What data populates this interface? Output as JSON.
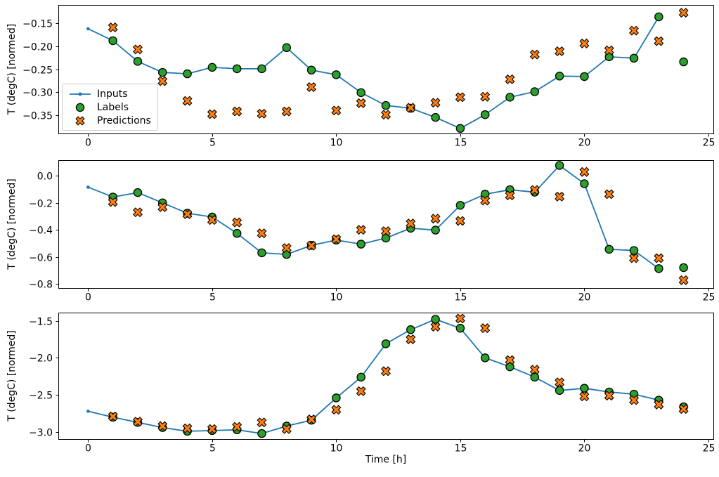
{
  "figure": {
    "background": "#ffffff"
  },
  "colors": {
    "inputs": "#1f77b4",
    "labels": "#2ca02c",
    "predictions": "#ff7f0e",
    "marker_edge": "#000000",
    "axis": "#000000",
    "legend_border": "#cccccc"
  },
  "legend": {
    "position": "inside-left-of-first-subplot",
    "items": [
      {
        "label": "Inputs",
        "marker": "line-with-dot"
      },
      {
        "label": "Labels",
        "marker": "filled-circle"
      },
      {
        "label": "Predictions",
        "marker": "thick-x"
      }
    ]
  },
  "chart_data": [
    {
      "type": "line",
      "subtype": "line+scatter",
      "title": "",
      "xlabel": "",
      "ylabel": "T (degC) [normed]",
      "grid": false,
      "xlim": [
        -1.2,
        25.2
      ],
      "ylim": [
        -0.39,
        -0.11
      ],
      "xticks": [
        0,
        5,
        10,
        15,
        20,
        25
      ],
      "xtick_labels": [
        "0",
        "5",
        "10",
        "15",
        "20",
        "25"
      ],
      "yticks": [
        -0.35,
        -0.3,
        -0.25,
        -0.2,
        -0.15
      ],
      "ytick_labels": [
        "−0.35",
        "−0.30",
        "−0.25",
        "−0.20",
        "−0.15"
      ],
      "series": [
        {
          "name": "Inputs",
          "type": "line",
          "marker": "dot",
          "x": [
            0,
            1,
            2,
            3,
            4,
            5,
            6,
            7,
            8,
            9,
            10,
            11,
            12,
            13,
            14,
            15,
            16,
            17,
            18,
            19,
            20,
            21,
            22,
            23
          ],
          "y": [
            -0.162,
            -0.188,
            -0.233,
            -0.257,
            -0.26,
            -0.246,
            -0.249,
            -0.249,
            -0.203,
            -0.252,
            -0.262,
            -0.301,
            -0.329,
            -0.335,
            -0.355,
            -0.379,
            -0.349,
            -0.311,
            -0.299,
            -0.265,
            -0.266,
            -0.223,
            -0.226,
            -0.136
          ]
        },
        {
          "name": "Labels",
          "type": "scatter",
          "marker": "circle",
          "x": [
            1,
            2,
            3,
            4,
            5,
            6,
            7,
            8,
            9,
            10,
            11,
            12,
            13,
            14,
            15,
            16,
            17,
            18,
            19,
            20,
            21,
            22,
            23,
            24
          ],
          "y": [
            -0.188,
            -0.233,
            -0.257,
            -0.26,
            -0.246,
            -0.249,
            -0.249,
            -0.203,
            -0.252,
            -0.262,
            -0.301,
            -0.329,
            -0.335,
            -0.355,
            -0.379,
            -0.349,
            -0.311,
            -0.299,
            -0.265,
            -0.266,
            -0.223,
            -0.226,
            -0.136,
            -0.234
          ]
        },
        {
          "name": "Predictions",
          "type": "scatter",
          "marker": "X",
          "x": [
            1,
            2,
            3,
            4,
            5,
            6,
            7,
            8,
            9,
            10,
            11,
            12,
            13,
            14,
            15,
            16,
            17,
            18,
            19,
            20,
            21,
            22,
            23,
            24
          ],
          "y": [
            -0.159,
            -0.207,
            -0.276,
            -0.319,
            -0.348,
            -0.342,
            -0.347,
            -0.342,
            -0.289,
            -0.34,
            -0.324,
            -0.349,
            -0.334,
            -0.323,
            -0.311,
            -0.31,
            -0.272,
            -0.218,
            -0.211,
            -0.194,
            -0.209,
            -0.166,
            -0.189,
            -0.127
          ]
        }
      ]
    },
    {
      "type": "line",
      "subtype": "line+scatter",
      "title": "",
      "xlabel": "",
      "ylabel": "T (degC) [normed]",
      "grid": false,
      "xlim": [
        -1.2,
        25.2
      ],
      "ylim": [
        -0.83,
        0.117
      ],
      "xticks": [
        0,
        5,
        10,
        15,
        20,
        25
      ],
      "xtick_labels": [
        "0",
        "5",
        "10",
        "15",
        "20",
        "25"
      ],
      "yticks": [
        -0.8,
        -0.6,
        -0.4,
        -0.2,
        0.0
      ],
      "ytick_labels": [
        "−0.8",
        "−0.6",
        "−0.4",
        "−0.2",
        "0.0"
      ],
      "series": [
        {
          "name": "Inputs",
          "type": "line",
          "marker": "dot",
          "x": [
            0,
            1,
            2,
            3,
            4,
            5,
            6,
            7,
            8,
            9,
            10,
            11,
            12,
            13,
            14,
            15,
            16,
            17,
            18,
            19,
            20,
            21,
            22,
            23
          ],
          "y": [
            -0.083,
            -0.156,
            -0.123,
            -0.199,
            -0.276,
            -0.304,
            -0.425,
            -0.569,
            -0.581,
            -0.514,
            -0.475,
            -0.505,
            -0.46,
            -0.387,
            -0.401,
            -0.217,
            -0.135,
            -0.102,
            -0.12,
            0.078,
            -0.057,
            -0.543,
            -0.552,
            -0.686
          ]
        },
        {
          "name": "Labels",
          "type": "scatter",
          "marker": "circle",
          "x": [
            1,
            2,
            3,
            4,
            5,
            6,
            7,
            8,
            9,
            10,
            11,
            12,
            13,
            14,
            15,
            16,
            17,
            18,
            19,
            20,
            21,
            22,
            23,
            24
          ],
          "y": [
            -0.156,
            -0.123,
            -0.199,
            -0.276,
            -0.304,
            -0.425,
            -0.569,
            -0.581,
            -0.514,
            -0.475,
            -0.505,
            -0.46,
            -0.387,
            -0.401,
            -0.217,
            -0.135,
            -0.102,
            -0.12,
            0.078,
            -0.057,
            -0.543,
            -0.552,
            -0.686,
            -0.679
          ]
        },
        {
          "name": "Predictions",
          "type": "scatter",
          "marker": "X",
          "x": [
            1,
            2,
            3,
            4,
            5,
            6,
            7,
            8,
            9,
            10,
            11,
            12,
            13,
            14,
            15,
            16,
            17,
            18,
            19,
            20,
            21,
            22,
            23,
            24
          ],
          "y": [
            -0.193,
            -0.269,
            -0.231,
            -0.283,
            -0.326,
            -0.344,
            -0.425,
            -0.534,
            -0.516,
            -0.468,
            -0.399,
            -0.409,
            -0.352,
            -0.316,
            -0.333,
            -0.182,
            -0.144,
            -0.104,
            -0.153,
            0.03,
            -0.135,
            -0.609,
            -0.609,
            -0.772
          ]
        }
      ]
    },
    {
      "type": "line",
      "subtype": "line+scatter",
      "title": "",
      "xlabel": "Time [h]",
      "ylabel": "T (degC) [normed]",
      "grid": false,
      "xlim": [
        -1.2,
        25.2
      ],
      "ylim": [
        -3.095,
        -1.39
      ],
      "xticks": [
        0,
        5,
        10,
        15,
        20,
        25
      ],
      "xtick_labels": [
        "0",
        "5",
        "10",
        "15",
        "20",
        "25"
      ],
      "yticks": [
        -3.0,
        -2.5,
        -2.0,
        -1.5
      ],
      "ytick_labels": [
        "−3.0",
        "−2.5",
        "−2.0",
        "−1.5"
      ],
      "series": [
        {
          "name": "Inputs",
          "type": "line",
          "marker": "dot",
          "x": [
            0,
            1,
            2,
            3,
            4,
            5,
            6,
            7,
            8,
            9,
            10,
            11,
            12,
            13,
            14,
            15,
            16,
            17,
            18,
            19,
            20,
            21,
            22,
            23
          ],
          "y": [
            -2.72,
            -2.8,
            -2.87,
            -2.94,
            -2.99,
            -2.98,
            -2.97,
            -3.02,
            -2.92,
            -2.84,
            -2.54,
            -2.26,
            -1.81,
            -1.62,
            -1.48,
            -1.6,
            -2.0,
            -2.12,
            -2.26,
            -2.44,
            -2.41,
            -2.46,
            -2.49,
            -2.57
          ]
        },
        {
          "name": "Labels",
          "type": "scatter",
          "marker": "circle",
          "x": [
            1,
            2,
            3,
            4,
            5,
            6,
            7,
            8,
            9,
            10,
            11,
            12,
            13,
            14,
            15,
            16,
            17,
            18,
            19,
            20,
            21,
            22,
            23,
            24
          ],
          "y": [
            -2.8,
            -2.87,
            -2.94,
            -2.99,
            -2.98,
            -2.97,
            -3.02,
            -2.92,
            -2.84,
            -2.54,
            -2.26,
            -1.81,
            -1.62,
            -1.48,
            -1.6,
            -2.0,
            -2.12,
            -2.26,
            -2.44,
            -2.41,
            -2.46,
            -2.49,
            -2.57,
            -2.66
          ]
        },
        {
          "name": "Predictions",
          "type": "scatter",
          "marker": "X",
          "x": [
            1,
            2,
            3,
            4,
            5,
            6,
            7,
            8,
            9,
            10,
            11,
            12,
            13,
            14,
            15,
            16,
            17,
            18,
            19,
            20,
            21,
            22,
            23,
            24
          ],
          "y": [
            -2.79,
            -2.86,
            -2.92,
            -2.95,
            -2.96,
            -2.93,
            -2.87,
            -2.96,
            -2.83,
            -2.7,
            -2.45,
            -2.18,
            -1.75,
            -1.58,
            -1.47,
            -1.6,
            -2.03,
            -2.16,
            -2.33,
            -2.52,
            -2.51,
            -2.57,
            -2.63,
            -2.69
          ]
        }
      ]
    }
  ]
}
